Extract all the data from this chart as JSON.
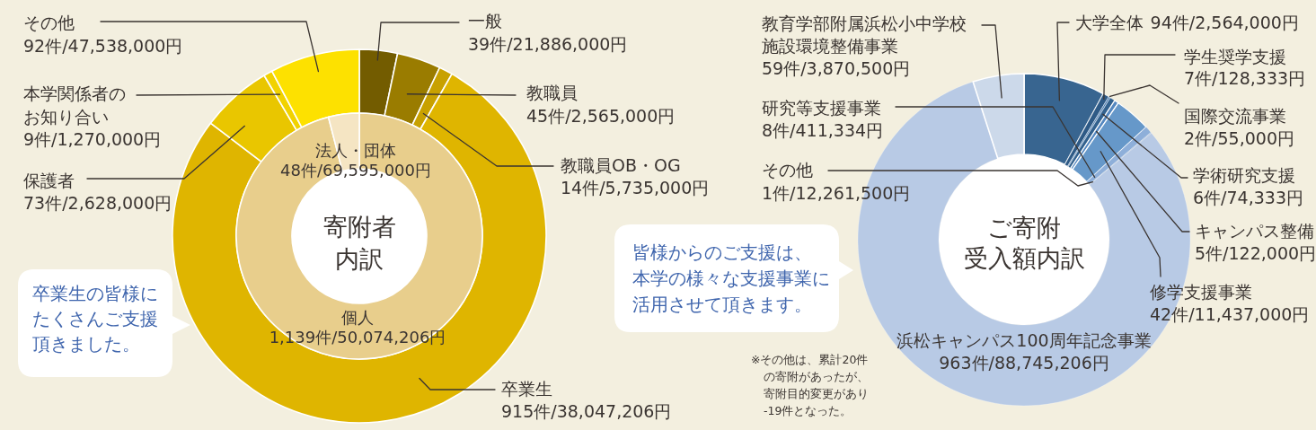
{
  "chart_data": [
    {
      "type": "donut",
      "title": "寄附者内訳",
      "categories": [
        "個人",
        "法人・団体"
      ],
      "values": [
        1139,
        48
      ],
      "value_labels": [
        "1,139件/50,074,206円",
        "48件/69,595,000円"
      ],
      "colors": [
        "#e8ce8c",
        "#f5e5c3"
      ]
    },
    {
      "type": "donut",
      "categories": [
        "一般",
        "教職員",
        "教職員OB・OG",
        "卒業生",
        "保護者",
        "本学関係者のお知り合い",
        "その他"
      ],
      "values": [
        39,
        45,
        14,
        915,
        73,
        9,
        92
      ],
      "value_labels": [
        "39件/21,886,000円",
        "45件/2,565,000円",
        "14件/5,735,000円",
        "915件/38,047,206円",
        "73件/2,628,000円",
        "9件/1,270,000円",
        "92件/47,538,000円"
      ],
      "colors": [
        "#735c00",
        "#9a7c00",
        "#c8a100",
        "#dfb500",
        "#e9c600",
        "#f1d200",
        "#fde100"
      ],
      "annotations": [
        "卒業生の皆様にたくさんご支援頂きました。"
      ]
    },
    {
      "type": "donut",
      "title": "ご寄附受入額内訳",
      "categories": [
        "大学全体",
        "学生奨学支援",
        "国際交流事業",
        "学術研究支援",
        "キャンパス整備",
        "修学支援事業",
        "研究等支援事業",
        "その他",
        "浜松キャンパス100周年記念事業",
        "教育学部附属浜松小中学校施設環境整備事業"
      ],
      "values": [
        94,
        7,
        2,
        6,
        5,
        42,
        8,
        1,
        963,
        59
      ],
      "value_labels": [
        "94件/2,564,000円",
        "7件/128,333円",
        "2件/55,000円",
        "6件/74,333円",
        "5件/122,000円",
        "42件/11,437,000円",
        "8件/411,334円",
        "1件/12,261,500円",
        "963件/88,745,206円",
        "59件/3,870,500円"
      ],
      "colors": [
        "#386590",
        "#2e5a86",
        "#4a7cb3",
        "#32618e",
        "#5588c0",
        "#6698c9",
        "#8eafd9",
        "#a3bde0",
        "#b8cae5",
        "#ccd9ea"
      ],
      "annotations": [
        "皆様からのご支援は、本学の様々な支援事業に活用させて頂きます。",
        "※その他は、累計20件の寄附があったが、寄附目的変更があり-19件となった。"
      ]
    }
  ]
}
